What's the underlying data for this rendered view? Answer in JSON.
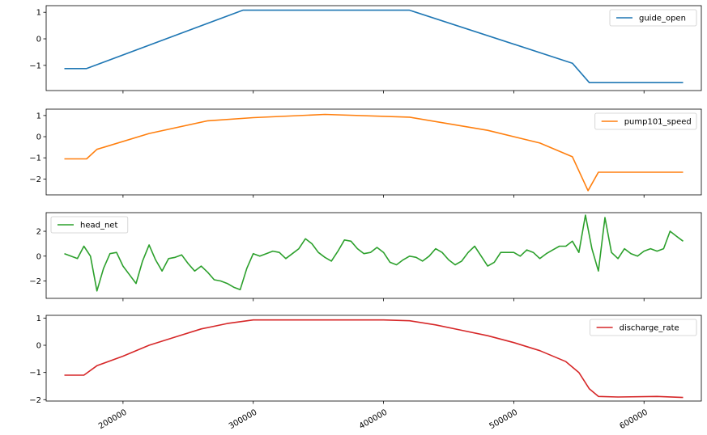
{
  "chart_data": [
    {
      "type": "line",
      "title": "",
      "legend": "top-right",
      "x": [
        155000,
        172000,
        292000,
        420000,
        545000,
        558000,
        630000
      ],
      "series": [
        {
          "name": "guide_open",
          "color": "#1f77b4",
          "values": [
            -1.12,
            -1.12,
            1.08,
            1.08,
            -0.92,
            -1.65,
            -1.65
          ]
        }
      ],
      "ylim": [
        -1.95,
        1.25
      ],
      "yticks": [
        -1,
        0,
        1
      ],
      "ytick_labels": [
        "−1",
        "0",
        "1"
      ]
    },
    {
      "type": "line",
      "title": "",
      "legend": "top-right",
      "x": [
        155000,
        172000,
        180000,
        220000,
        265000,
        300000,
        355000,
        420000,
        480000,
        520000,
        545000,
        557000,
        565000,
        630000
      ],
      "series": [
        {
          "name": "pump101_speed",
          "color": "#ff7f0e",
          "values": [
            -1.05,
            -1.05,
            -0.6,
            0.15,
            0.75,
            0.9,
            1.05,
            0.92,
            0.3,
            -0.3,
            -0.95,
            -2.55,
            -1.68,
            -1.68
          ]
        }
      ],
      "ylim": [
        -2.75,
        1.3
      ],
      "yticks": [
        -2,
        -1,
        0,
        1
      ],
      "ytick_labels": [
        "−2",
        "−1",
        "0",
        "1"
      ]
    },
    {
      "type": "line",
      "title": "",
      "legend": "top-left",
      "x": [
        155000,
        160000,
        165000,
        170000,
        175000,
        180000,
        185000,
        190000,
        195000,
        200000,
        205000,
        210000,
        215000,
        220000,
        225000,
        230000,
        235000,
        240000,
        245000,
        250000,
        255000,
        260000,
        265000,
        270000,
        275000,
        280000,
        285000,
        290000,
        295000,
        300000,
        305000,
        310000,
        315000,
        320000,
        325000,
        330000,
        335000,
        340000,
        345000,
        350000,
        355000,
        360000,
        365000,
        370000,
        375000,
        380000,
        385000,
        390000,
        395000,
        400000,
        405000,
        410000,
        415000,
        420000,
        425000,
        430000,
        435000,
        440000,
        445000,
        450000,
        455000,
        460000,
        465000,
        470000,
        475000,
        480000,
        485000,
        490000,
        495000,
        500000,
        505000,
        510000,
        515000,
        520000,
        525000,
        530000,
        535000,
        540000,
        545000,
        550000,
        555000,
        560000,
        565000,
        570000,
        575000,
        580000,
        585000,
        590000,
        595000,
        600000,
        605000,
        610000,
        615000,
        620000,
        625000,
        630000
      ],
      "series": [
        {
          "name": "head_net",
          "color": "#2ca02c",
          "values": [
            0.2,
            0.0,
            -0.2,
            0.8,
            0.0,
            -2.8,
            -1.0,
            0.2,
            0.3,
            -0.8,
            -1.5,
            -2.2,
            -0.4,
            0.9,
            -0.3,
            -1.2,
            -0.2,
            -0.1,
            0.1,
            -0.6,
            -1.2,
            -0.8,
            -1.3,
            -1.9,
            -2.0,
            -2.2,
            -2.5,
            -2.7,
            -1.0,
            0.2,
            0.0,
            0.2,
            0.4,
            0.3,
            -0.2,
            0.2,
            0.6,
            1.4,
            1.0,
            0.3,
            -0.1,
            -0.4,
            0.4,
            1.3,
            1.2,
            0.6,
            0.2,
            0.3,
            0.7,
            0.3,
            -0.5,
            -0.7,
            -0.3,
            0.0,
            -0.1,
            -0.4,
            0.0,
            0.6,
            0.3,
            -0.3,
            -0.7,
            -0.4,
            0.3,
            0.8,
            0.0,
            -0.8,
            -0.5,
            0.3,
            0.3,
            0.3,
            0.0,
            0.5,
            0.3,
            -0.2,
            0.2,
            0.5,
            0.8,
            0.8,
            1.2,
            0.3,
            3.3,
            0.6,
            -1.2,
            3.1,
            0.3,
            -0.2,
            0.6,
            0.2,
            0.0,
            0.4,
            0.6,
            0.4,
            0.6,
            2.0,
            1.6,
            1.2
          ]
        }
      ],
      "ylim": [
        -3.4,
        3.5
      ],
      "yticks": [
        -2,
        0,
        2
      ],
      "ytick_labels": [
        "−2",
        "0",
        "2"
      ]
    },
    {
      "type": "line",
      "title": "",
      "legend": "top-right",
      "x": [
        155000,
        170000,
        180000,
        200000,
        220000,
        240000,
        260000,
        280000,
        300000,
        320000,
        340000,
        360000,
        380000,
        400000,
        420000,
        440000,
        460000,
        480000,
        500000,
        520000,
        540000,
        550000,
        558000,
        565000,
        580000,
        610000,
        630000
      ],
      "series": [
        {
          "name": "discharge_rate",
          "color": "#d62728",
          "values": [
            -1.1,
            -1.1,
            -0.75,
            -0.4,
            0.0,
            0.3,
            0.6,
            0.8,
            0.93,
            0.93,
            0.93,
            0.93,
            0.93,
            0.93,
            0.9,
            0.75,
            0.55,
            0.35,
            0.1,
            -0.2,
            -0.6,
            -1.0,
            -1.6,
            -1.88,
            -1.9,
            -1.88,
            -1.92
          ]
        }
      ],
      "ylim": [
        -2.05,
        1.1
      ],
      "yticks": [
        -2,
        -1,
        0,
        1
      ],
      "ytick_labels": [
        "−2",
        "−1",
        "0",
        "1"
      ]
    }
  ],
  "x_axis": {
    "xlim": [
      141000,
      644000
    ],
    "ticks": [
      200000,
      300000,
      400000,
      500000,
      600000
    ],
    "tick_labels": [
      "200000",
      "300000",
      "400000",
      "500000",
      "600000"
    ]
  }
}
